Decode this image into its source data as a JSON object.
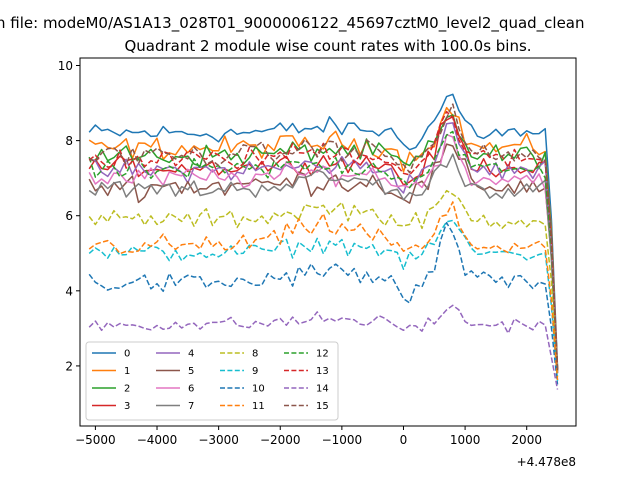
{
  "figure": {
    "suptitle": "n file: modeM0/AS1A13_028T01_9000006122_45697cztM0_level2_quad_clean"
  },
  "chart_data": {
    "type": "line",
    "title": "Quadrant 2 module wise count rates with 100.0s bins.",
    "xlabel": "",
    "ylabel": "",
    "x_offset_label": "+4.478e8",
    "xlim": [
      -5250,
      2800
    ],
    "ylim": [
      0.4,
      10.2
    ],
    "xticks": [
      -5000,
      -4000,
      -3000,
      -2000,
      -1000,
      0,
      1000,
      2000
    ],
    "xtick_labels": [
      "−5000",
      "−4000",
      "−3000",
      "−2000",
      "−1000",
      "0",
      "1000",
      "2000"
    ],
    "yticks": [
      2,
      4,
      6,
      8,
      10
    ],
    "ytick_labels": [
      "2",
      "4",
      "6",
      "8",
      "10"
    ],
    "grid": false,
    "legend": {
      "placement": "lower-left",
      "columns": 4
    },
    "x_start": -5100,
    "x_step": 100,
    "series_points": 77,
    "series": [
      {
        "name": "0",
        "color": "#1f77b4",
        "dash": "solid",
        "base": 8.2,
        "noise": 0.22,
        "bump": 1.0,
        "slope": 0.05
      },
      {
        "name": "1",
        "color": "#ff7f0e",
        "dash": "solid",
        "base": 7.8,
        "noise": 0.25,
        "bump": 1.0,
        "slope": 0.05
      },
      {
        "name": "2",
        "color": "#2ca02c",
        "dash": "solid",
        "base": 7.6,
        "noise": 0.25,
        "bump": 1.0,
        "slope": 0.05
      },
      {
        "name": "3",
        "color": "#d62728",
        "dash": "solid",
        "base": 7.3,
        "noise": 0.22,
        "bump": 1.3,
        "slope": 0.05
      },
      {
        "name": "4",
        "color": "#9467bd",
        "dash": "solid",
        "base": 7.2,
        "noise": 0.25,
        "bump": 1.1,
        "slope": 0.05
      },
      {
        "name": "5",
        "color": "#8c564b",
        "dash": "solid",
        "base": 6.8,
        "noise": 0.3,
        "bump": 1.0,
        "slope": 0.05
      },
      {
        "name": "6",
        "color": "#e377c2",
        "dash": "solid",
        "base": 7.0,
        "noise": 0.25,
        "bump": 1.0,
        "slope": 0.05
      },
      {
        "name": "7",
        "color": "#7f7f7f",
        "dash": "solid",
        "base": 6.7,
        "noise": 0.22,
        "bump": 0.9,
        "slope": 0.1
      },
      {
        "name": "8",
        "color": "#bcbd22",
        "dash": "dashed",
        "base": 5.9,
        "noise": 0.22,
        "bump": 0.7,
        "slope": 0.1
      },
      {
        "name": "9",
        "color": "#17becf",
        "dash": "dashed",
        "base": 5.0,
        "noise": 0.2,
        "bump": 0.9,
        "slope": 0.08
      },
      {
        "name": "10",
        "color": "#1f77b4",
        "dash": "dashed",
        "base": 4.2,
        "noise": 0.25,
        "bump": 1.4,
        "slope": 0.1
      },
      {
        "name": "11",
        "color": "#ff7f0e",
        "dash": "dashed",
        "base": 5.2,
        "noise": 0.25,
        "bump": 0.9,
        "slope": 0.18
      },
      {
        "name": "12",
        "color": "#2ca02c",
        "dash": "dashed",
        "base": 7.2,
        "noise": 0.25,
        "bump": 1.0,
        "slope": 0.05
      },
      {
        "name": "13",
        "color": "#d62728",
        "dash": "dashed",
        "base": 7.5,
        "noise": 0.25,
        "bump": 1.2,
        "slope": 0.08
      },
      {
        "name": "14",
        "color": "#9467bd",
        "dash": "dashed",
        "base": 3.1,
        "noise": 0.16,
        "bump": 0.4,
        "slope": 0.05
      },
      {
        "name": "15",
        "color": "#8c564b",
        "dash": "dashed",
        "base": 7.6,
        "noise": 0.25,
        "bump": 1.2,
        "slope": 0.07
      }
    ]
  }
}
